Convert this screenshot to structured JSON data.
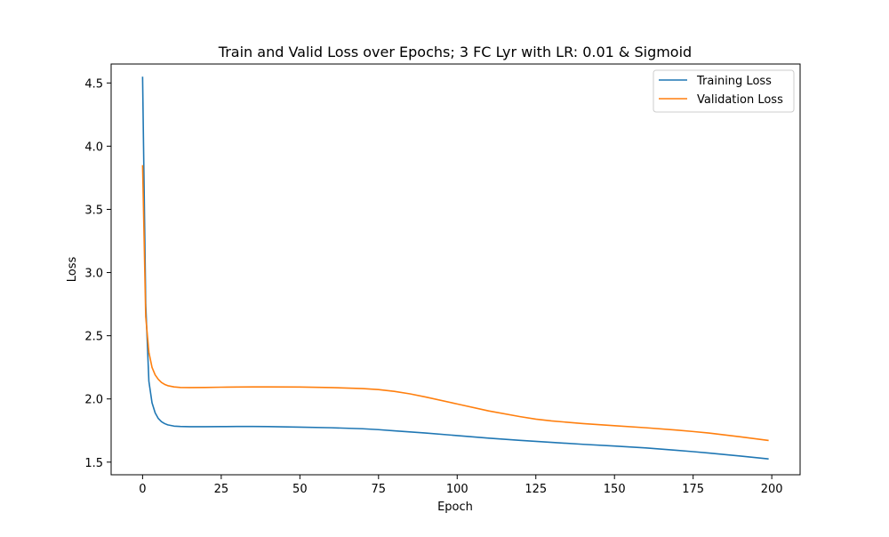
{
  "chart_data": {
    "type": "line",
    "title": "Train and Valid Loss over Epochs; 3 FC Lyr with LR: 0.01 & Sigmoid",
    "xlabel": "Epoch",
    "ylabel": "Loss",
    "xlim": [
      -10,
      209
    ],
    "ylim": [
      1.4,
      4.65
    ],
    "xticks": [
      0,
      25,
      50,
      75,
      100,
      125,
      150,
      175,
      200
    ],
    "yticks": [
      1.5,
      2.0,
      2.5,
      3.0,
      3.5,
      4.0,
      4.5
    ],
    "xtick_labels": [
      "0",
      "25",
      "50",
      "75",
      "100",
      "125",
      "150",
      "175",
      "200"
    ],
    "ytick_labels": [
      "1.5",
      "2.0",
      "2.5",
      "3.0",
      "3.5",
      "4.0",
      "4.5"
    ],
    "grid": false,
    "legend_position": "top-right",
    "series": [
      {
        "name": "Training Loss",
        "color": "#1f77b4",
        "x": [
          0,
          1,
          2,
          3,
          4,
          5,
          6,
          7,
          8,
          10,
          12,
          15,
          20,
          25,
          30,
          35,
          40,
          50,
          60,
          70,
          75,
          80,
          90,
          100,
          110,
          120,
          125,
          130,
          140,
          150,
          160,
          170,
          175,
          180,
          190,
          199
        ],
        "y": [
          4.55,
          2.75,
          2.14,
          1.97,
          1.89,
          1.845,
          1.82,
          1.805,
          1.795,
          1.785,
          1.782,
          1.78,
          1.78,
          1.781,
          1.782,
          1.782,
          1.781,
          1.777,
          1.772,
          1.764,
          1.757,
          1.748,
          1.73,
          1.71,
          1.69,
          1.672,
          1.664,
          1.656,
          1.641,
          1.627,
          1.612,
          1.593,
          1.583,
          1.572,
          1.548,
          1.525
        ]
      },
      {
        "name": "Validation Loss",
        "color": "#ff7f0e",
        "x": [
          0,
          1,
          2,
          3,
          4,
          5,
          6,
          7,
          8,
          10,
          12,
          15,
          20,
          25,
          30,
          35,
          40,
          50,
          60,
          70,
          75,
          80,
          85,
          90,
          100,
          110,
          120,
          125,
          130,
          140,
          150,
          160,
          170,
          175,
          180,
          190,
          199
        ],
        "y": [
          3.85,
          2.65,
          2.37,
          2.25,
          2.19,
          2.155,
          2.13,
          2.115,
          2.105,
          2.095,
          2.091,
          2.09,
          2.091,
          2.093,
          2.094,
          2.095,
          2.095,
          2.094,
          2.09,
          2.082,
          2.074,
          2.06,
          2.04,
          2.015,
          1.96,
          1.905,
          1.86,
          1.84,
          1.826,
          1.805,
          1.788,
          1.772,
          1.753,
          1.742,
          1.73,
          1.7,
          1.671
        ]
      }
    ]
  }
}
